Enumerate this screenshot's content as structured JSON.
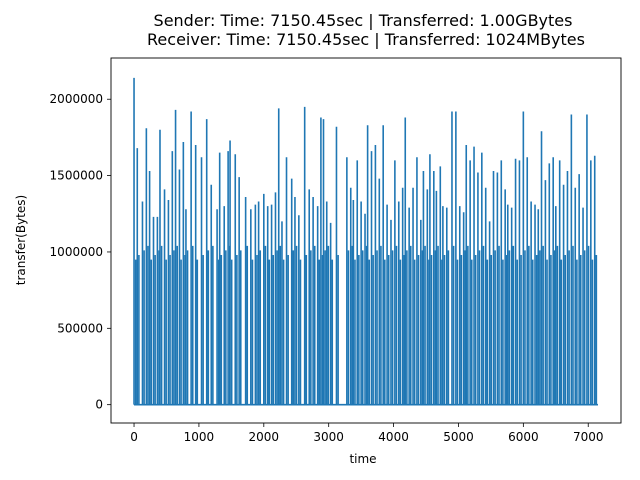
{
  "chart_data": {
    "type": "line",
    "title": "Sender: Time: 7150.45sec | Transferred: 1.00GBytes",
    "subtitle": "Receiver: Time: 7150.45sec | Transferred: 1024MBytes",
    "xlabel": "time",
    "ylabel": "transfer(Bytes)",
    "xlim": [
      -355,
      7505
    ],
    "ylim": [
      -120000,
      2270000
    ],
    "xticks": [
      0,
      1000,
      2000,
      3000,
      4000,
      5000,
      6000,
      7000
    ],
    "xtick_labels": [
      "0",
      "1000",
      "2000",
      "3000",
      "4000",
      "5000",
      "6000",
      "7000"
    ],
    "yticks": [
      0,
      500000,
      1000000,
      1500000,
      2000000
    ],
    "ytick_labels": [
      "0",
      "500000",
      "1000000",
      "1500000",
      "2000000"
    ],
    "grid": false,
    "legend": "none",
    "series": [
      {
        "color": "#1f77b4",
        "burst_period_sec": 20,
        "bursts": [
          [
            0,
            2140000
          ],
          [
            50,
            1680000
          ],
          [
            130,
            1330000
          ],
          [
            190,
            1810000
          ],
          [
            240,
            1530000
          ],
          [
            300,
            1230000
          ],
          [
            360,
            1230000
          ],
          [
            400,
            1800000
          ],
          [
            470,
            1410000
          ],
          [
            530,
            1340000
          ],
          [
            590,
            1660000
          ],
          [
            640,
            1930000
          ],
          [
            700,
            1540000
          ],
          [
            760,
            1720000
          ],
          [
            800,
            1280000
          ],
          [
            880,
            1920000
          ],
          [
            950,
            1700000
          ],
          [
            1040,
            1620000
          ],
          [
            1120,
            1870000
          ],
          [
            1190,
            1440000
          ],
          [
            1280,
            1280000
          ],
          [
            1320,
            1650000
          ],
          [
            1390,
            1300000
          ],
          [
            1450,
            1660000
          ],
          [
            1480,
            1730000
          ],
          [
            1560,
            1640000
          ],
          [
            1620,
            1490000
          ],
          [
            1720,
            1360000
          ],
          [
            1800,
            1280000
          ],
          [
            1870,
            1310000
          ],
          [
            1920,
            1330000
          ],
          [
            2000,
            1380000
          ],
          [
            2060,
            1300000
          ],
          [
            2120,
            1310000
          ],
          [
            2180,
            1390000
          ],
          [
            2230,
            1940000
          ],
          [
            2280,
            1200000
          ],
          [
            2350,
            1620000
          ],
          [
            2430,
            1480000
          ],
          [
            2480,
            1360000
          ],
          [
            2540,
            1240000
          ],
          [
            2630,
            1950000
          ],
          [
            2700,
            1410000
          ],
          [
            2760,
            1360000
          ],
          [
            2830,
            1300000
          ],
          [
            2880,
            1880000
          ],
          [
            2920,
            1870000
          ],
          [
            2970,
            1330000
          ],
          [
            3030,
            1190000
          ],
          [
            3120,
            1820000
          ],
          [
            3280,
            1620000
          ],
          [
            3340,
            1420000
          ],
          [
            3380,
            1340000
          ],
          [
            3440,
            1600000
          ],
          [
            3500,
            1330000
          ],
          [
            3560,
            1250000
          ],
          [
            3600,
            1830000
          ],
          [
            3660,
            1660000
          ],
          [
            3720,
            1700000
          ],
          [
            3780,
            1480000
          ],
          [
            3840,
            1830000
          ],
          [
            3900,
            1310000
          ],
          [
            3960,
            1210000
          ],
          [
            4020,
            1600000
          ],
          [
            4080,
            1330000
          ],
          [
            4140,
            1420000
          ],
          [
            4180,
            1880000
          ],
          [
            4240,
            1290000
          ],
          [
            4300,
            1420000
          ],
          [
            4360,
            1620000
          ],
          [
            4420,
            1210000
          ],
          [
            4460,
            1530000
          ],
          [
            4520,
            1410000
          ],
          [
            4560,
            1640000
          ],
          [
            4620,
            1530000
          ],
          [
            4660,
            1400000
          ],
          [
            4720,
            1560000
          ],
          [
            4760,
            1300000
          ],
          [
            4820,
            1290000
          ],
          [
            4900,
            1920000
          ],
          [
            4960,
            1920000
          ],
          [
            5020,
            1300000
          ],
          [
            5080,
            1260000
          ],
          [
            5120,
            1700000
          ],
          [
            5180,
            1600000
          ],
          [
            5240,
            1690000
          ],
          [
            5300,
            1520000
          ],
          [
            5360,
            1650000
          ],
          [
            5420,
            1420000
          ],
          [
            5480,
            1200000
          ],
          [
            5540,
            1530000
          ],
          [
            5600,
            1520000
          ],
          [
            5660,
            1600000
          ],
          [
            5720,
            1410000
          ],
          [
            5760,
            1310000
          ],
          [
            5820,
            1290000
          ],
          [
            5880,
            1610000
          ],
          [
            5940,
            1600000
          ],
          [
            6000,
            1920000
          ],
          [
            6060,
            1620000
          ],
          [
            6120,
            1330000
          ],
          [
            6180,
            1310000
          ],
          [
            6230,
            1280000
          ],
          [
            6280,
            1790000
          ],
          [
            6340,
            1470000
          ],
          [
            6400,
            1580000
          ],
          [
            6460,
            1620000
          ],
          [
            6500,
            1300000
          ],
          [
            6560,
            1600000
          ],
          [
            6620,
            1440000
          ],
          [
            6680,
            1530000
          ],
          [
            6740,
            1900000
          ],
          [
            6800,
            1420000
          ],
          [
            6860,
            1510000
          ],
          [
            6920,
            1290000
          ],
          [
            6980,
            1900000
          ],
          [
            7040,
            1600000
          ],
          [
            7100,
            1630000
          ]
        ],
        "low_value": 0,
        "gap": [
          3180,
          3260
        ],
        "end_x": 7150
      }
    ]
  }
}
